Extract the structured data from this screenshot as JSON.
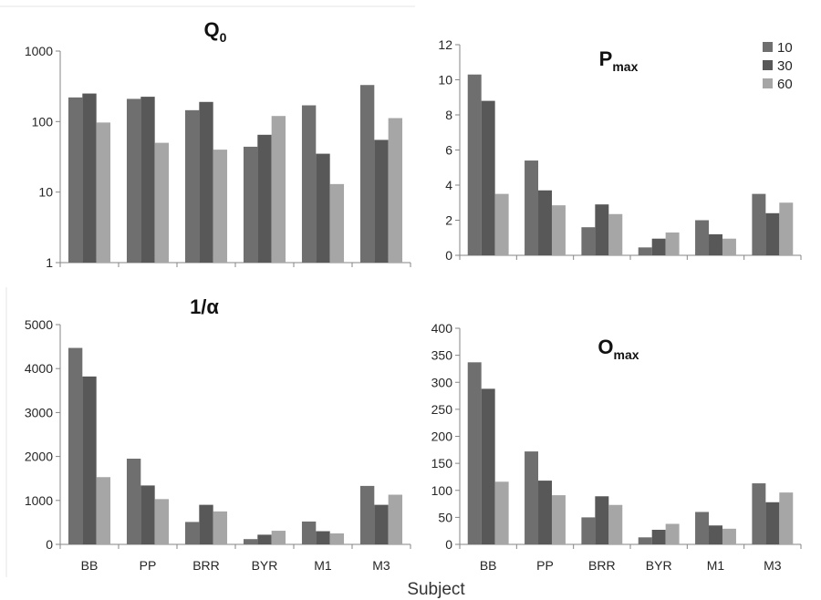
{
  "figure": {
    "xlabel": "Subject",
    "colors": [
      "#6f6f6f",
      "#585858",
      "#a6a6a6"
    ]
  },
  "legend": {
    "entries": [
      "10",
      "30",
      "60"
    ]
  },
  "chart_data": [
    {
      "type": "bar",
      "title": "Q",
      "title_sub": "0",
      "scale": "log",
      "ylim": [
        1,
        1000
      ],
      "yticks": [
        "1",
        "10",
        "100",
        "1000"
      ],
      "categories": [
        "BB",
        "PP",
        "BRR",
        "BYR",
        "M1",
        "M3"
      ],
      "show_categories": false,
      "series": [
        {
          "name": "10",
          "values": [
            220,
            210,
            145,
            44,
            170,
            330
          ]
        },
        {
          "name": "30",
          "values": [
            250,
            225,
            190,
            65,
            35,
            55
          ]
        },
        {
          "name": "60",
          "values": [
            97,
            50,
            40,
            120,
            13,
            112
          ]
        }
      ]
    },
    {
      "type": "bar",
      "title": "P",
      "title_sub": "max",
      "scale": "linear",
      "ylim": [
        0,
        12
      ],
      "yticks": [
        "0",
        "2",
        "4",
        "6",
        "8",
        "10",
        "12"
      ],
      "categories": [
        "BB",
        "PP",
        "BRR",
        "BYR",
        "M1",
        "M3"
      ],
      "show_categories": false,
      "series": [
        {
          "name": "10",
          "values": [
            10.3,
            5.4,
            1.6,
            0.45,
            2.0,
            3.5
          ]
        },
        {
          "name": "30",
          "values": [
            8.8,
            3.7,
            2.9,
            0.95,
            1.2,
            2.4
          ]
        },
        {
          "name": "60",
          "values": [
            3.5,
            2.85,
            2.35,
            1.3,
            0.95,
            3.0
          ]
        }
      ]
    },
    {
      "type": "bar",
      "title": "1/α",
      "title_sub": "",
      "scale": "linear",
      "ylim": [
        0,
        5000
      ],
      "yticks": [
        "0",
        "1000",
        "2000",
        "3000",
        "4000",
        "5000"
      ],
      "categories": [
        "BB",
        "PP",
        "BRR",
        "BYR",
        "M1",
        "M3"
      ],
      "show_categories": true,
      "series": [
        {
          "name": "10",
          "values": [
            4470,
            1950,
            510,
            120,
            520,
            1330
          ]
        },
        {
          "name": "30",
          "values": [
            3820,
            1340,
            900,
            220,
            300,
            900
          ]
        },
        {
          "name": "60",
          "values": [
            1530,
            1030,
            750,
            310,
            250,
            1130
          ]
        }
      ]
    },
    {
      "type": "bar",
      "title": "O",
      "title_sub": "max",
      "scale": "linear",
      "ylim": [
        0,
        400
      ],
      "yticks": [
        "0",
        "50",
        "100",
        "150",
        "200",
        "250",
        "300",
        "350",
        "400"
      ],
      "categories": [
        "BB",
        "PP",
        "BRR",
        "BYR",
        "M1",
        "M3"
      ],
      "show_categories": true,
      "series": [
        {
          "name": "10",
          "values": [
            337,
            172,
            50,
            13,
            60,
            113
          ]
        },
        {
          "name": "30",
          "values": [
            288,
            118,
            89,
            27,
            35,
            78
          ]
        },
        {
          "name": "60",
          "values": [
            116,
            91,
            73,
            38,
            29,
            96
          ]
        }
      ]
    }
  ]
}
